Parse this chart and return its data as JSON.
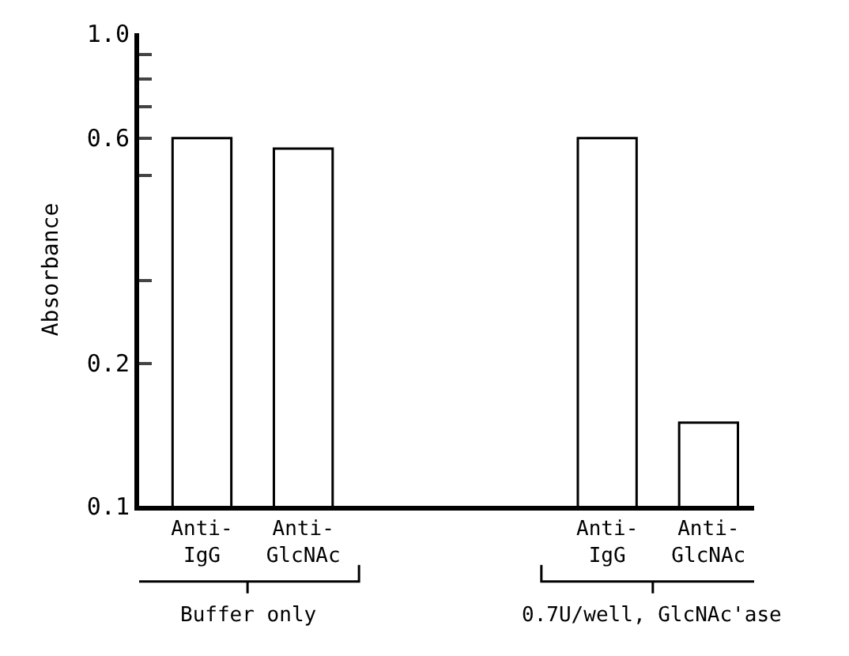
{
  "chart_data": {
    "type": "bar",
    "ylabel": "Absorbance",
    "categories": [
      "Anti-\nIgG",
      "Anti-\nGlcNAc",
      null,
      null,
      "Anti-\nIgG",
      "Anti-\nGlcNAc"
    ],
    "series": [
      {
        "color": "#ffffff",
        "values": [
          0.6,
          0.57,
          null,
          null,
          0.6,
          0.15
        ]
      }
    ],
    "log": "y",
    "ylim": [
      0.1,
      1.0
    ],
    "yticks": [
      0.1,
      0.2,
      {
        "value": 0.3,
        "label": null
      },
      {
        "value": 0.5,
        "label": null
      },
      0.6,
      {
        "value": 0.7,
        "label": null
      },
      {
        "value": 0.8,
        "label": null
      },
      {
        "value": 0.9,
        "label": null
      },
      {
        "value": 1.0,
        "label": "1.0"
      }
    ],
    "annotations": [
      "Buffer only",
      "0.7U/well, GlcNAc'ase"
    ],
    "legend": false
  }
}
